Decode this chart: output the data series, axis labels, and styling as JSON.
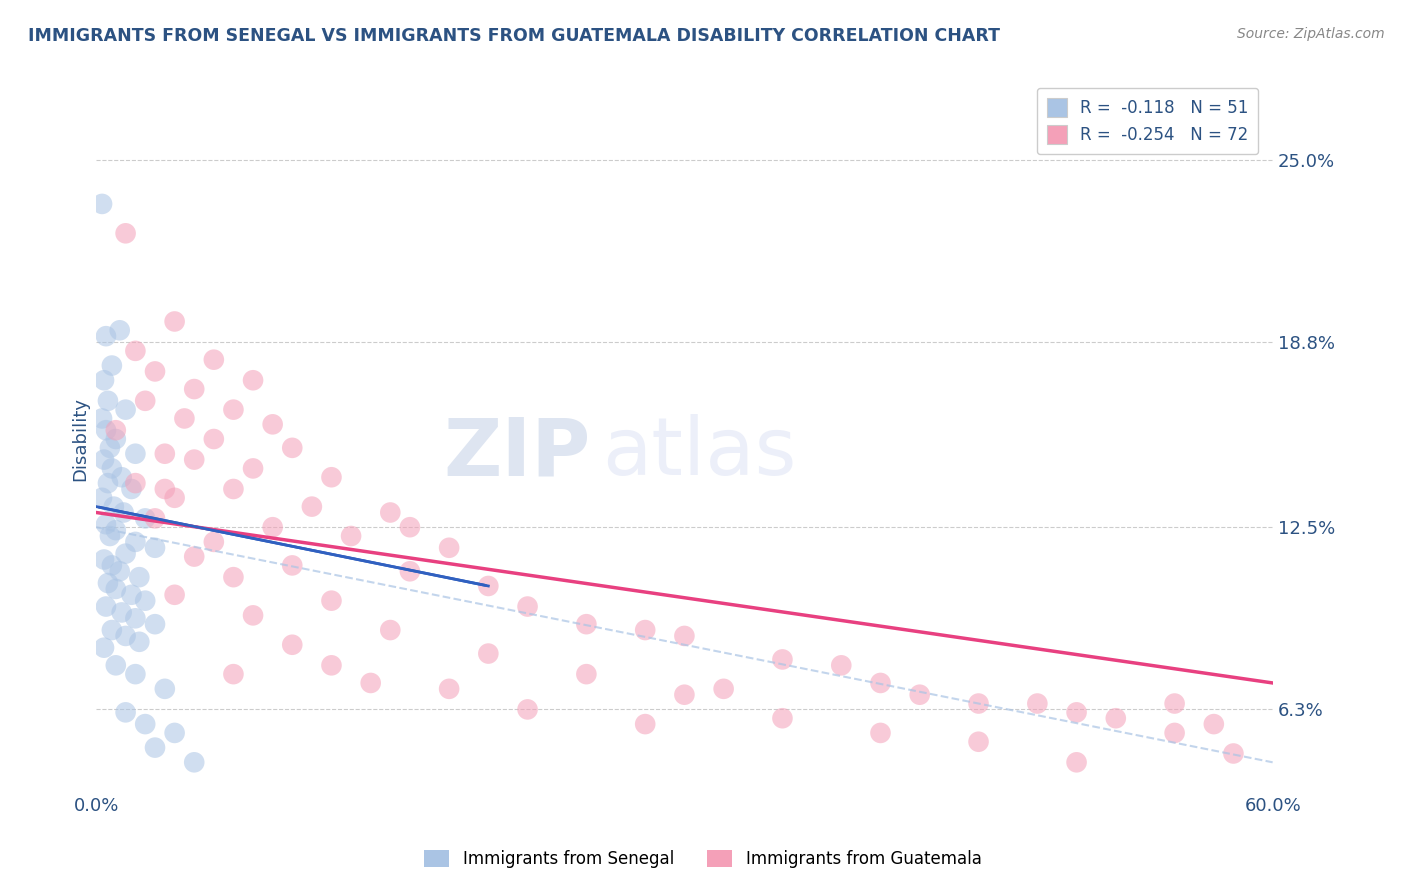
{
  "title": "IMMIGRANTS FROM SENEGAL VS IMMIGRANTS FROM GUATEMALA DISABILITY CORRELATION CHART",
  "source": "Source: ZipAtlas.com",
  "ylabel_label": "Disability",
  "y_ticks": [
    6.3,
    12.5,
    18.8,
    25.0
  ],
  "y_tick_labels": [
    "6.3%",
    "12.5%",
    "18.8%",
    "25.0%"
  ],
  "xlim": [
    0.0,
    60.0
  ],
  "ylim": [
    3.5,
    27.5
  ],
  "legend_entries": [
    {
      "label": "R =  -0.118   N = 51",
      "color": "#aac4e4"
    },
    {
      "label": "R =  -0.254   N = 72",
      "color": "#f4a0b8"
    }
  ],
  "legend_bottom": [
    {
      "label": "Immigrants from Senegal",
      "color": "#aac4e4"
    },
    {
      "label": "Immigrants from Guatemala",
      "color": "#f4a0b8"
    }
  ],
  "watermark_zip": "ZIP",
  "watermark_atlas": "atlas",
  "senegal_scatter": [
    [
      0.3,
      23.5
    ],
    [
      1.2,
      19.2
    ],
    [
      0.5,
      19.0
    ],
    [
      0.8,
      18.0
    ],
    [
      0.4,
      17.5
    ],
    [
      0.6,
      16.8
    ],
    [
      1.5,
      16.5
    ],
    [
      0.3,
      16.2
    ],
    [
      0.5,
      15.8
    ],
    [
      1.0,
      15.5
    ],
    [
      0.7,
      15.2
    ],
    [
      2.0,
      15.0
    ],
    [
      0.4,
      14.8
    ],
    [
      0.8,
      14.5
    ],
    [
      1.3,
      14.2
    ],
    [
      0.6,
      14.0
    ],
    [
      1.8,
      13.8
    ],
    [
      0.3,
      13.5
    ],
    [
      0.9,
      13.2
    ],
    [
      1.4,
      13.0
    ],
    [
      2.5,
      12.8
    ],
    [
      0.5,
      12.6
    ],
    [
      1.0,
      12.4
    ],
    [
      0.7,
      12.2
    ],
    [
      2.0,
      12.0
    ],
    [
      3.0,
      11.8
    ],
    [
      1.5,
      11.6
    ],
    [
      0.4,
      11.4
    ],
    [
      0.8,
      11.2
    ],
    [
      1.2,
      11.0
    ],
    [
      2.2,
      10.8
    ],
    [
      0.6,
      10.6
    ],
    [
      1.0,
      10.4
    ],
    [
      1.8,
      10.2
    ],
    [
      2.5,
      10.0
    ],
    [
      0.5,
      9.8
    ],
    [
      1.3,
      9.6
    ],
    [
      2.0,
      9.4
    ],
    [
      3.0,
      9.2
    ],
    [
      0.8,
      9.0
    ],
    [
      1.5,
      8.8
    ],
    [
      2.2,
      8.6
    ],
    [
      0.4,
      8.4
    ],
    [
      1.0,
      7.8
    ],
    [
      2.0,
      7.5
    ],
    [
      3.5,
      7.0
    ],
    [
      1.5,
      6.2
    ],
    [
      2.5,
      5.8
    ],
    [
      4.0,
      5.5
    ],
    [
      3.0,
      5.0
    ],
    [
      5.0,
      4.5
    ]
  ],
  "guatemala_scatter": [
    [
      1.5,
      22.5
    ],
    [
      4.0,
      19.5
    ],
    [
      2.0,
      18.5
    ],
    [
      6.0,
      18.2
    ],
    [
      3.0,
      17.8
    ],
    [
      8.0,
      17.5
    ],
    [
      5.0,
      17.2
    ],
    [
      2.5,
      16.8
    ],
    [
      7.0,
      16.5
    ],
    [
      4.5,
      16.2
    ],
    [
      9.0,
      16.0
    ],
    [
      1.0,
      15.8
    ],
    [
      6.0,
      15.5
    ],
    [
      10.0,
      15.2
    ],
    [
      3.5,
      15.0
    ],
    [
      5.0,
      14.8
    ],
    [
      8.0,
      14.5
    ],
    [
      12.0,
      14.2
    ],
    [
      2.0,
      14.0
    ],
    [
      7.0,
      13.8
    ],
    [
      4.0,
      13.5
    ],
    [
      11.0,
      13.2
    ],
    [
      15.0,
      13.0
    ],
    [
      3.0,
      12.8
    ],
    [
      9.0,
      12.5
    ],
    [
      13.0,
      12.2
    ],
    [
      6.0,
      12.0
    ],
    [
      18.0,
      11.8
    ],
    [
      5.0,
      11.5
    ],
    [
      10.0,
      11.2
    ],
    [
      16.0,
      11.0
    ],
    [
      7.0,
      10.8
    ],
    [
      20.0,
      10.5
    ],
    [
      4.0,
      10.2
    ],
    [
      12.0,
      10.0
    ],
    [
      22.0,
      9.8
    ],
    [
      8.0,
      9.5
    ],
    [
      25.0,
      9.2
    ],
    [
      15.0,
      9.0
    ],
    [
      30.0,
      8.8
    ],
    [
      10.0,
      8.5
    ],
    [
      20.0,
      8.2
    ],
    [
      35.0,
      8.0
    ],
    [
      12.0,
      7.8
    ],
    [
      25.0,
      7.5
    ],
    [
      40.0,
      7.2
    ],
    [
      18.0,
      7.0
    ],
    [
      30.0,
      6.8
    ],
    [
      45.0,
      6.5
    ],
    [
      22.0,
      6.3
    ],
    [
      35.0,
      6.0
    ],
    [
      50.0,
      6.2
    ],
    [
      28.0,
      5.8
    ],
    [
      40.0,
      5.5
    ],
    [
      55.0,
      5.5
    ],
    [
      45.0,
      5.2
    ],
    [
      58.0,
      4.8
    ],
    [
      50.0,
      4.5
    ],
    [
      7.0,
      7.5
    ],
    [
      14.0,
      7.2
    ],
    [
      32.0,
      7.0
    ],
    [
      42.0,
      6.8
    ],
    [
      48.0,
      6.5
    ],
    [
      52.0,
      6.0
    ],
    [
      57.0,
      5.8
    ],
    [
      3.5,
      13.8
    ],
    [
      16.0,
      12.5
    ],
    [
      28.0,
      9.0
    ],
    [
      38.0,
      7.8
    ],
    [
      55.0,
      6.5
    ]
  ],
  "background_color": "#ffffff",
  "grid_color": "#cccccc",
  "scatter_senegal_color": "#aac4e4",
  "scatter_guatemala_color": "#f4a0b8",
  "trend_senegal_color": "#3060c0",
  "trend_guatemala_color": "#e84080",
  "title_color": "#2c5282",
  "axis_label_color": "#2c5282",
  "tick_color": "#2c5282",
  "senegal_trend_x_end": 20.0,
  "senegal_trend_start_y": 13.2,
  "senegal_trend_end_y": 10.5,
  "guatemala_trend_start_y": 13.0,
  "guatemala_trend_end_y": 7.2,
  "dashed_trend_start_y": 12.5,
  "dashed_trend_end_y": 4.5
}
